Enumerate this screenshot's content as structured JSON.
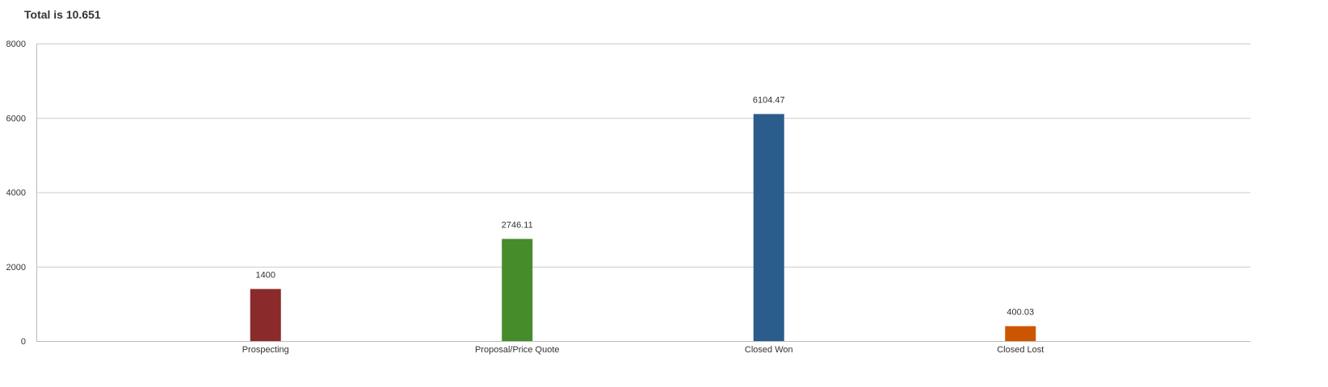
{
  "chart_data": {
    "type": "bar",
    "title": "Total is 10.651",
    "categories": [
      "Prospecting",
      "Proposal/Price Quote",
      "Closed Won",
      "Closed Lost"
    ],
    "values": [
      1400,
      2746.11,
      6104.47,
      400.03
    ],
    "value_labels": [
      "1400",
      "2746.11",
      "6104.47",
      "400.03"
    ],
    "colors": [
      "#8b2a2a",
      "#468c2b",
      "#2a5d8b",
      "#cc5500"
    ],
    "y_ticks": [
      0,
      2000,
      4000,
      6000,
      8000
    ],
    "ylim": [
      0,
      8000
    ],
    "grid": true,
    "legend": "none"
  }
}
